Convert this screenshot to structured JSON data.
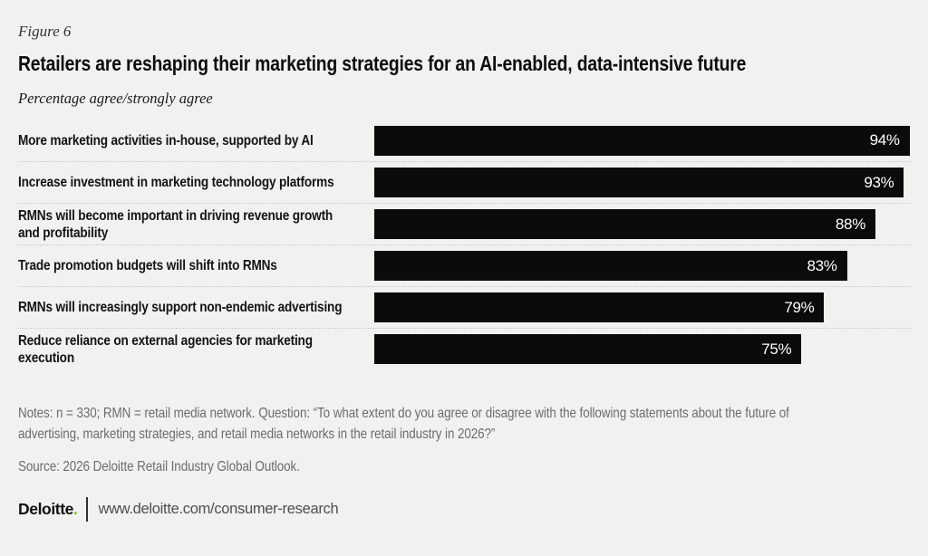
{
  "figure_label": "Figure 6",
  "title": "Retailers are reshaping their marketing strategies for an AI-enabled, data-intensive future",
  "subtitle": "Percentage agree/strongly agree",
  "chart_data": {
    "type": "bar",
    "orientation": "horizontal",
    "title": "Retailers are reshaping their marketing strategies for an AI-enabled, data-intensive future",
    "subtitle": "Percentage agree/strongly agree",
    "categories": [
      "More marketing activities in-house, supported by AI",
      "Increase investment in marketing technology platforms",
      "RMNs will become important in driving revenue growth\nand profitability",
      "Trade promotion budgets will shift into RMNs",
      "RMNs will increasingly support non-endemic advertising",
      "Reduce reliance on external agencies for marketing\nexecution"
    ],
    "values": [
      94,
      93,
      88,
      83,
      79,
      75
    ],
    "value_labels": [
      "94%",
      "93%",
      "88%",
      "83%",
      "79%",
      "75%"
    ],
    "unit": "%",
    "xlim": [
      0,
      100
    ],
    "scale_max": 94.2,
    "grid": false,
    "legend": false,
    "bar_color": "#0b0b0b",
    "value_label_color": "#ffffff"
  },
  "notes": "Notes: n = 330; RMN = retail media network. Question: “To what extent do you agree or disagree with the following statements about the future of\nadvertising, marketing strategies, and retail media networks in the retail industry in 2026?”",
  "source": "Source: 2026 Deloitte Retail Industry Global Outlook.",
  "footer": {
    "brand": "Deloitte",
    "brand_dot": ".",
    "url": "www.deloitte.com/consumer-research"
  },
  "colors": {
    "background": "#f1f1ef",
    "bar": "#0b0b0b",
    "accent_green": "#86bc25",
    "text_dark": "#0d0d0d",
    "text_muted": "#6c6c6c",
    "separator": "#c7c7c5"
  }
}
